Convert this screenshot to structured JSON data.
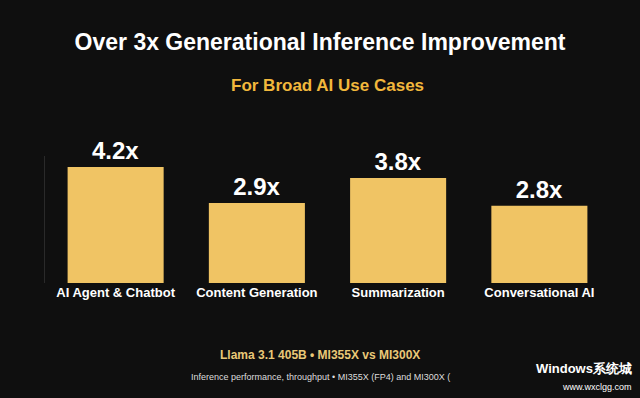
{
  "chart_data": {
    "type": "bar",
    "title": "Over 3x Generational Inference Improvement",
    "subtitle": "For Broad AI Use Cases",
    "categories": [
      "AI Agent & Chatbot",
      "Content Generation",
      "Summarization",
      "Conversational AI"
    ],
    "values": [
      4.2,
      2.9,
      3.8,
      2.8
    ],
    "value_labels": [
      "4.2x",
      "2.9x",
      "3.8x",
      "2.8x"
    ],
    "color": "#f0c464",
    "data_labels": true,
    "tick_labels": "x",
    "grid": false,
    "ylim": [
      0,
      4.6
    ],
    "annotations": [
      "Llama 3.1 405B • MI355X vs MI300X",
      "Inference performance, throughput • MI355X (FP4) and MI300X ("
    ],
    "watermark": [
      "Windows系统城",
      "www.wxclgg.com"
    ]
  }
}
